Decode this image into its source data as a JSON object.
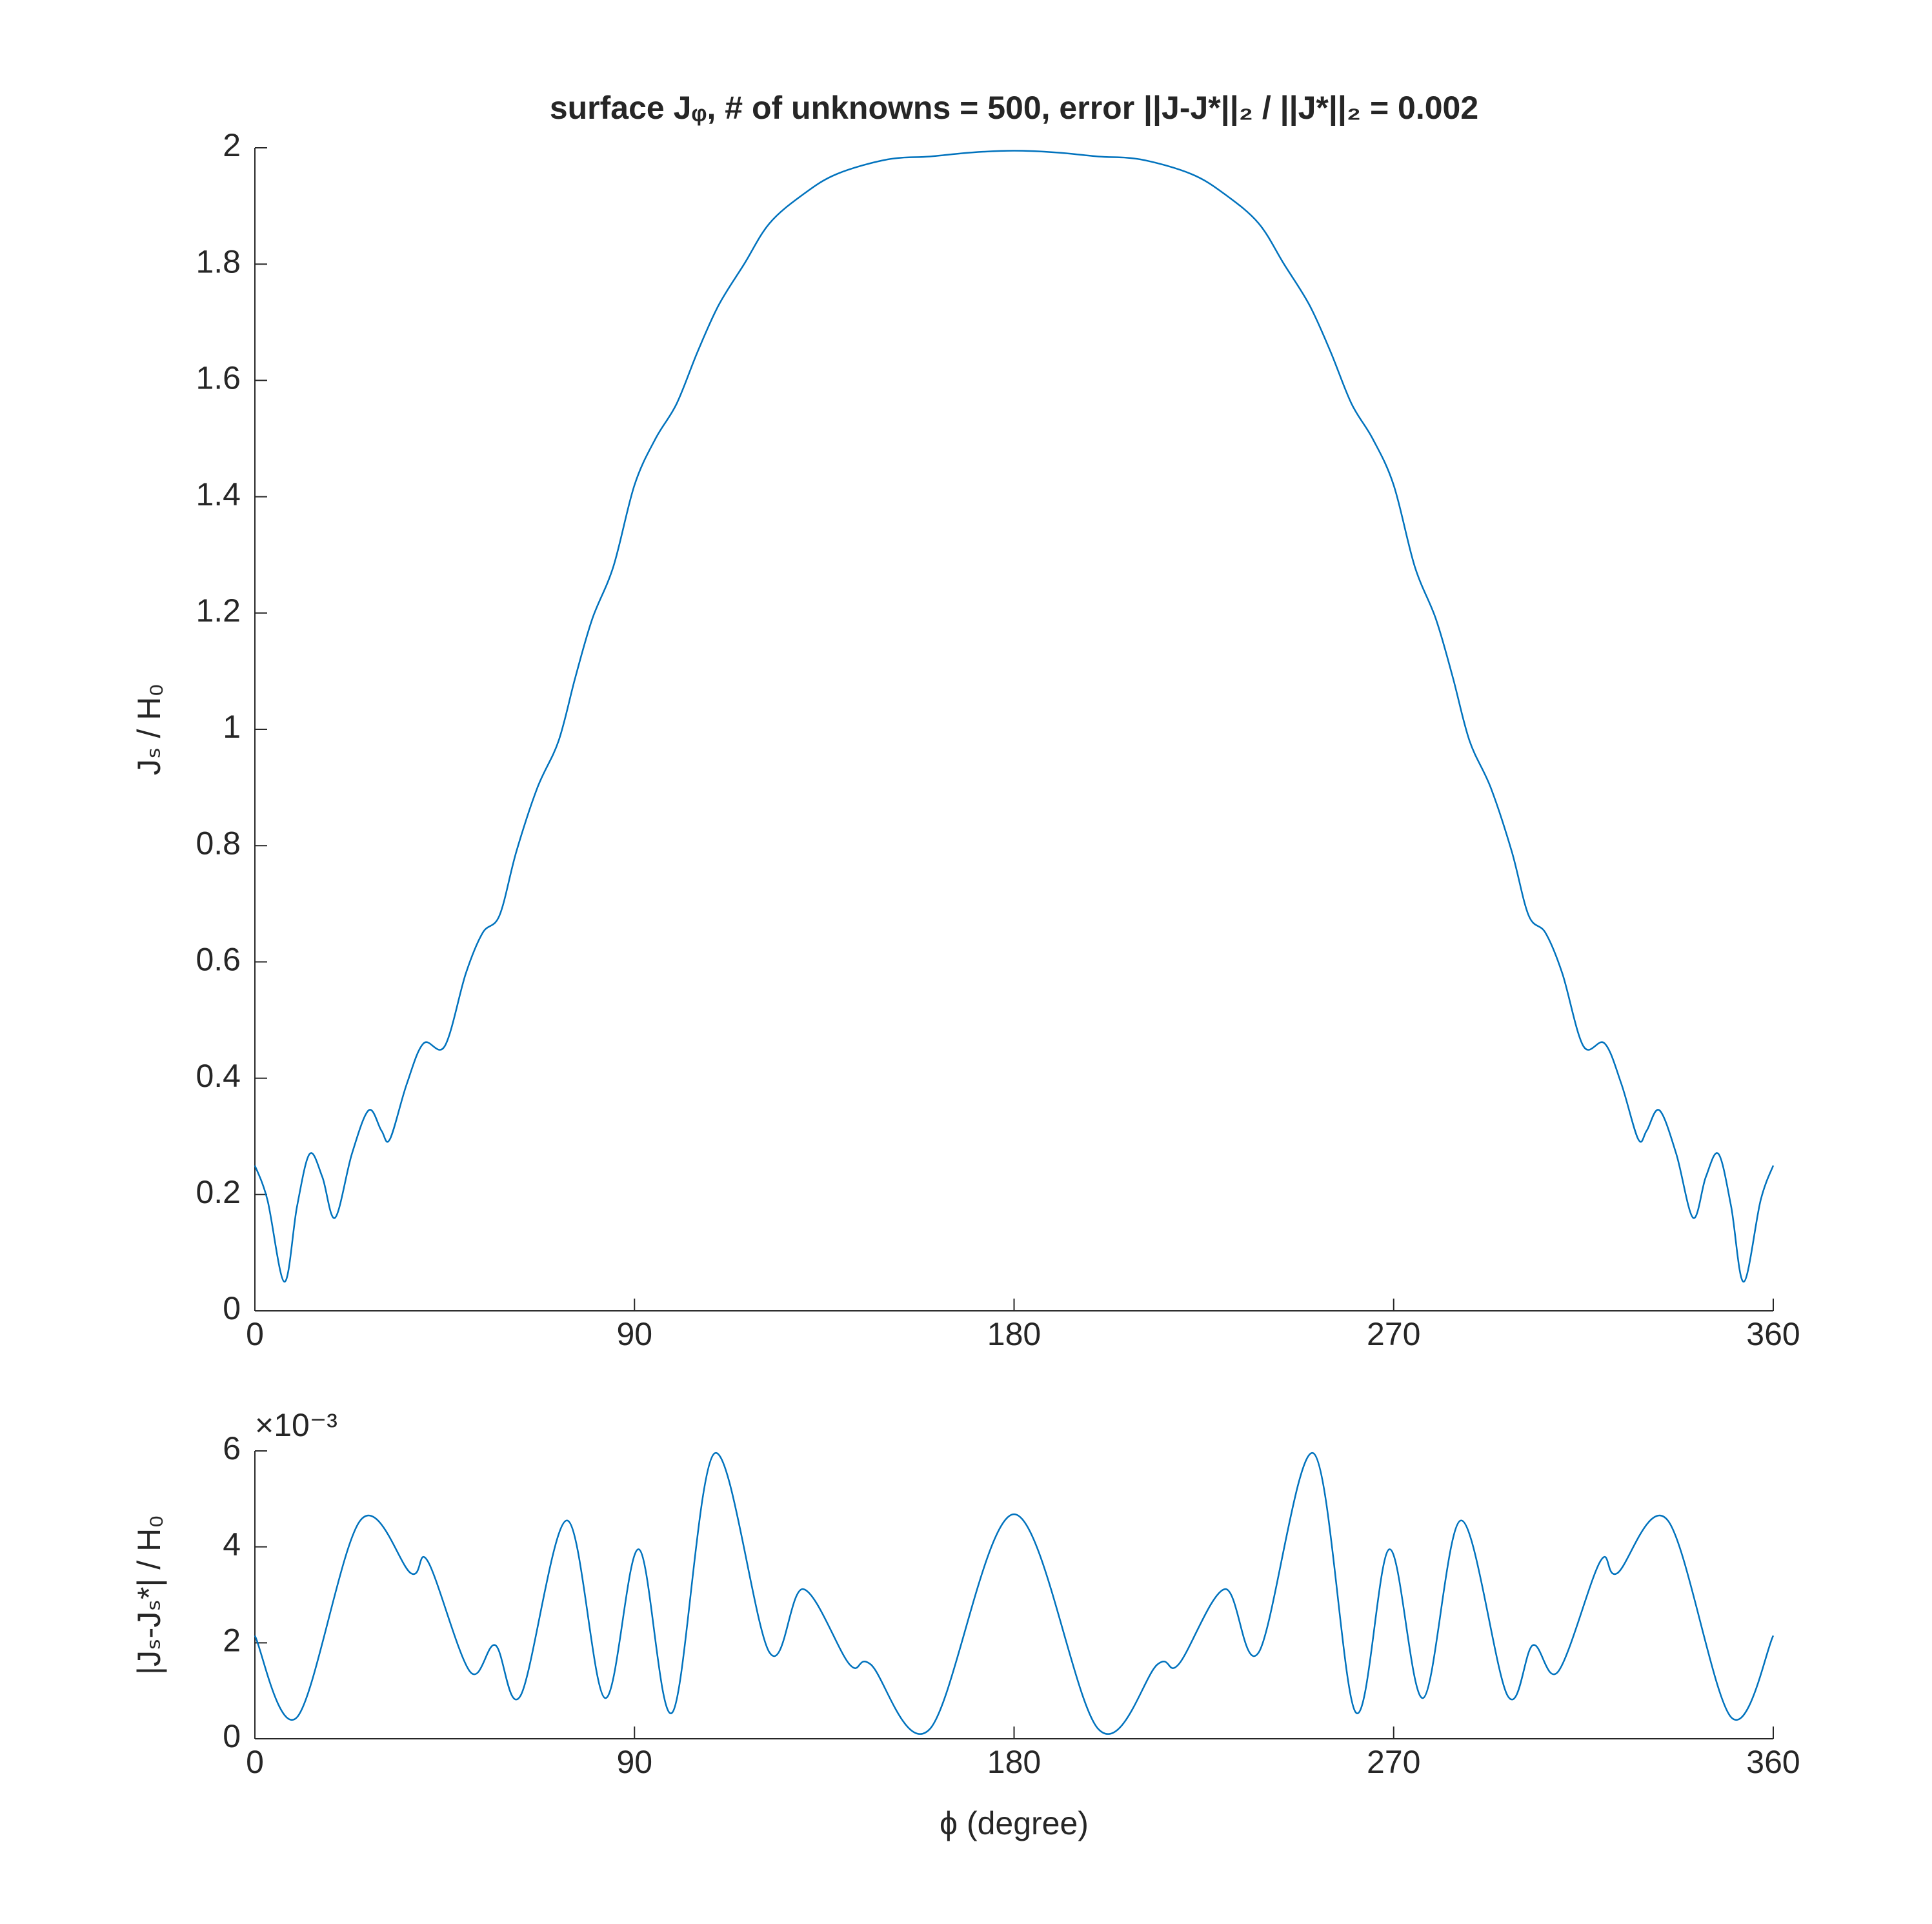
{
  "chart_data": [
    {
      "type": "line",
      "title": "surface Jᵩ, # of unknowns = 500, error ||J-J*||₂ / ||J*||₂ = 0.002",
      "y_label": "Jₛ / H₀",
      "xlim": [
        0,
        360
      ],
      "xticks": [
        0,
        90,
        180,
        270,
        360
      ],
      "ylim": [
        0,
        2
      ],
      "yticks": [
        0,
        0.2,
        0.4,
        0.6,
        0.8,
        1,
        1.2,
        1.4,
        1.6,
        1.8,
        2
      ],
      "grid": false,
      "series": [
        {
          "color": "#0072bd",
          "x": [
            0,
            3,
            7,
            10,
            13,
            16,
            19,
            23,
            27,
            30,
            32,
            36,
            40,
            45,
            50,
            54,
            58,
            62,
            67,
            72,
            76,
            80,
            85,
            90,
            95,
            100,
            105,
            110,
            116,
            122,
            130,
            138,
            150,
            160,
            170,
            180,
            190,
            200,
            210,
            222,
            230,
            238,
            244,
            250,
            255,
            260,
            265,
            270,
            275,
            280,
            284,
            288,
            293,
            298,
            302,
            306,
            310,
            315,
            320,
            324,
            328,
            330,
            333,
            337,
            341,
            344,
            347,
            350,
            353,
            357,
            360
          ],
          "values": [
            0.25,
            0.19,
            0.05,
            0.18,
            0.27,
            0.23,
            0.16,
            0.27,
            0.345,
            0.31,
            0.295,
            0.39,
            0.46,
            0.455,
            0.58,
            0.65,
            0.68,
            0.79,
            0.9,
            0.98,
            1.09,
            1.19,
            1.28,
            1.42,
            1.5,
            1.56,
            1.65,
            1.73,
            1.8,
            1.87,
            1.92,
            1.955,
            1.98,
            1.985,
            1.992,
            1.995,
            1.992,
            1.985,
            1.98,
            1.955,
            1.92,
            1.87,
            1.8,
            1.73,
            1.65,
            1.56,
            1.5,
            1.42,
            1.28,
            1.19,
            1.09,
            0.98,
            0.9,
            0.79,
            0.68,
            0.65,
            0.58,
            0.455,
            0.46,
            0.39,
            0.295,
            0.31,
            0.345,
            0.27,
            0.16,
            0.23,
            0.27,
            0.18,
            0.05,
            0.19,
            0.25
          ]
        }
      ]
    },
    {
      "type": "line",
      "x_label": "ϕ (degree)",
      "y_label": "|Jₛ-Jₛ*| / H₀",
      "y_exponent_label": "×10⁻³",
      "xlim": [
        0,
        360
      ],
      "xticks": [
        0,
        90,
        180,
        270,
        360
      ],
      "ylim": [
        0,
        6
      ],
      "yticks": [
        0,
        2,
        4,
        6
      ],
      "grid": false,
      "series": [
        {
          "color": "#0072bd",
          "x": [
            0,
            10,
            25,
            37,
            41,
            51,
            57,
            63,
            74,
            83,
            91,
            99,
            109,
            122,
            130,
            141,
            146,
            160,
            180,
            200,
            214,
            219,
            230,
            238,
            251,
            261,
            269,
            277,
            286,
            297,
            303,
            309,
            319,
            323,
            335,
            350,
            360
          ],
          "values": [
            2.15,
            0.45,
            4.55,
            3.45,
            3.7,
            1.4,
            1.95,
            0.9,
            4.55,
            0.85,
            3.95,
            0.55,
            5.95,
            1.8,
            3.12,
            1.55,
            1.55,
            0.2,
            4.68,
            0.2,
            1.55,
            1.55,
            3.12,
            1.8,
            5.95,
            0.55,
            3.95,
            0.85,
            4.55,
            0.9,
            1.95,
            1.4,
            3.7,
            3.45,
            4.55,
            0.45,
            2.15
          ]
        }
      ]
    }
  ]
}
